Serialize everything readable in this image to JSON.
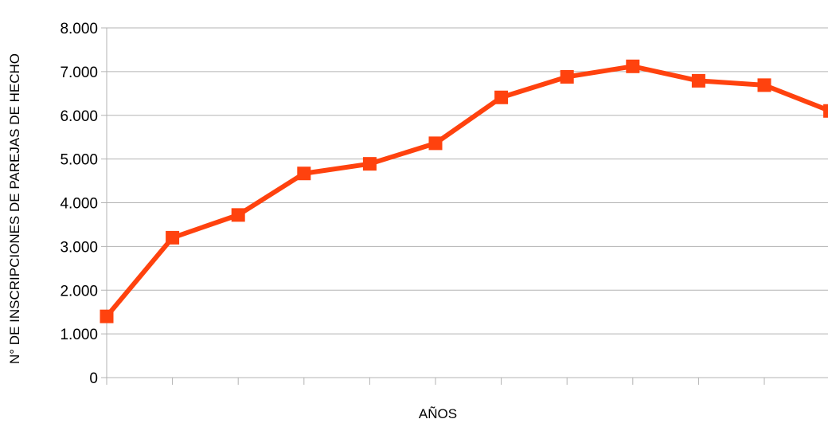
{
  "chart_data": {
    "type": "line",
    "title": "",
    "xlabel": "AÑOS",
    "ylabel": "N° DE INSCRIPCIONES DE PAREJAS DE HECHO",
    "ylim": [
      0,
      8000
    ],
    "yticks": [
      "0",
      "1.000",
      "2.000",
      "3.000",
      "4.000",
      "5.000",
      "6.000",
      "7.000",
      "8.000"
    ],
    "ytick_values": [
      0,
      1000,
      2000,
      3000,
      4000,
      5000,
      6000,
      7000,
      8000
    ],
    "x": [
      1,
      2,
      3,
      4,
      5,
      6,
      7,
      8,
      9,
      10,
      11,
      12
    ],
    "grid": "horizontal",
    "legend": "none",
    "series": [
      {
        "values": [
          1400,
          3200,
          3720,
          4670,
          4890,
          5360,
          6410,
          6880,
          7120,
          6790,
          6690,
          6100
        ],
        "color": "#ff420e",
        "marker": "square"
      }
    ]
  }
}
